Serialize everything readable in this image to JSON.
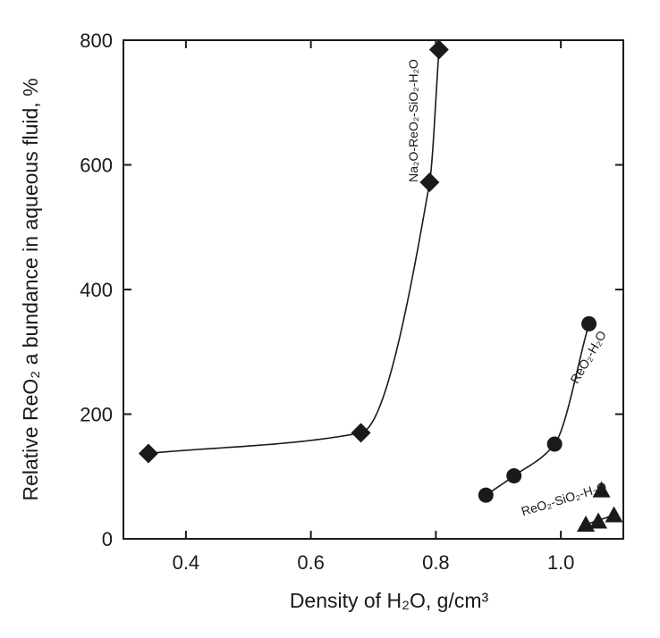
{
  "chart_data": {
    "type": "scatter",
    "title": "",
    "xlabel": "Density of H₂O, g/cm³",
    "ylabel": "Relative ReO₂ a bundance in aqueous fluid, %",
    "xlim": [
      0.3,
      1.1
    ],
    "ylim": [
      0,
      800
    ],
    "xticks": [
      0.4,
      0.6,
      0.8,
      1.0
    ],
    "xtick_labels": [
      "0.4",
      "0.6",
      "0.8",
      "1.0"
    ],
    "yticks": [
      0,
      200,
      400,
      600,
      800
    ],
    "ytick_labels": [
      "0",
      "200",
      "400",
      "600",
      "800"
    ],
    "grid": false,
    "legend": "none (series labeled inline)",
    "series": [
      {
        "name": "Na₂O-ReO₂-SiO₂-H₂O",
        "marker": "diamond",
        "x": [
          0.34,
          0.68,
          0.79,
          0.805
        ],
        "y": [
          137,
          170,
          572,
          785
        ]
      },
      {
        "name": "ReO₂-H₂O",
        "marker": "circle",
        "x": [
          0.88,
          0.925,
          0.99,
          1.045
        ],
        "y": [
          70,
          101,
          152,
          345
        ]
      },
      {
        "name": "ReO₂-SiO₂-H₂O",
        "marker": "triangle",
        "x": [
          1.04,
          1.06,
          1.065,
          1.085
        ],
        "y": [
          23,
          28,
          78,
          38
        ]
      }
    ]
  },
  "colors": {
    "ink": "#1a1a1a",
    "background": "#ffffff"
  }
}
